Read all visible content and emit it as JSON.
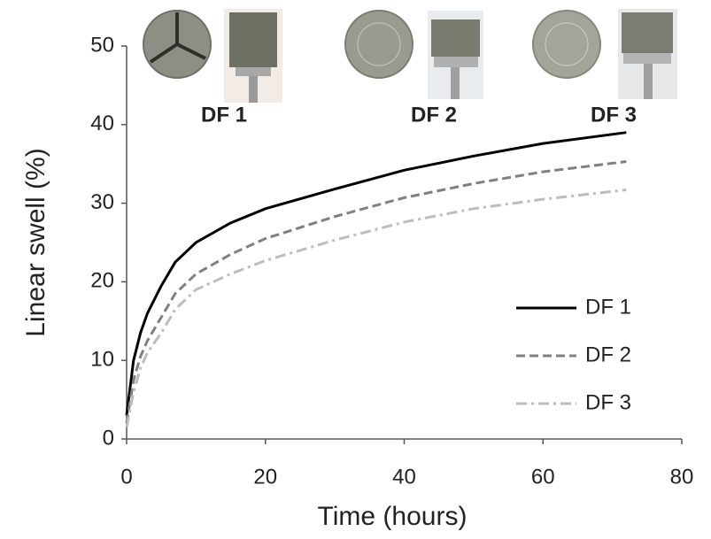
{
  "chart_data": {
    "type": "line",
    "x_label": "Time (hours)",
    "y_label": "Linear swell (%)",
    "annotations": [
      "DF 1",
      "DF 2",
      "DF 3"
    ],
    "x": [
      0,
      1,
      2,
      3,
      5,
      7,
      10,
      15,
      20,
      30,
      40,
      50,
      60,
      72
    ],
    "series": [
      {
        "name": "DF 1",
        "color": "#000000",
        "dash": "solid",
        "values": [
          3,
          10,
          13.5,
          16,
          19.5,
          22.5,
          25,
          27.5,
          29.3,
          31.8,
          34.2,
          36,
          37.6,
          39
        ]
      },
      {
        "name": "DF 2",
        "color": "#808080",
        "dash": "dashed",
        "values": [
          2,
          7.5,
          10.5,
          12.5,
          15.5,
          18.5,
          21,
          23.5,
          25.5,
          28.3,
          30.7,
          32.5,
          34,
          35.3
        ]
      },
      {
        "name": "DF 3",
        "color": "#bdbdbd",
        "dash": "dashdot",
        "values": [
          1.5,
          6,
          9,
          11,
          13.5,
          16.5,
          19,
          21,
          22.7,
          25.3,
          27.6,
          29.3,
          30.5,
          31.7
        ]
      }
    ],
    "xlim": [
      0,
      80
    ],
    "xticks": [
      0,
      20,
      40,
      60,
      80
    ],
    "ylim": [
      0,
      50
    ],
    "yticks": [
      0,
      10,
      20,
      30,
      40,
      50
    ],
    "grid": false,
    "legend": "lower right"
  }
}
